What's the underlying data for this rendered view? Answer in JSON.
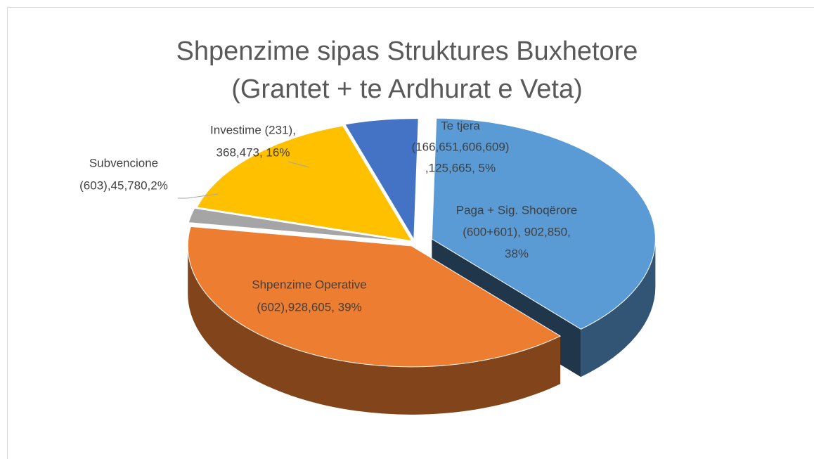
{
  "chart_data": {
    "type": "pie",
    "title": [
      "Shpenzime sipas Struktures Buxhetore",
      "(Grantet + te Ardhurat e Veta)"
    ],
    "categories": [
      "Paga + Sig. Shoqërore (600+601)",
      "Shpenzime Operative (602)",
      "Subvencione (603)",
      "Investime (231)",
      "Te tjera (166,651,606,609)"
    ],
    "values": [
      902850,
      928605,
      45780,
      368473,
      125665
    ],
    "value_labels": [
      [
        "Paga + Sig. Shoqërore",
        "(600+601), 902,850,",
        "38%"
      ],
      [
        "Shpenzime Operative",
        "(602),928,605, 39%"
      ],
      [
        "Subvencione",
        "(603),45,780,2%"
      ],
      [
        "Investime (231),",
        "368,473, 16%"
      ],
      [
        "Te tjera",
        "(166,651,606,609)",
        ",125,665, 5%"
      ]
    ],
    "colors": [
      "#5b9bd5",
      "#ed7d31",
      "#a5a5a5",
      "#ffc000",
      "#4472c4"
    ]
  }
}
